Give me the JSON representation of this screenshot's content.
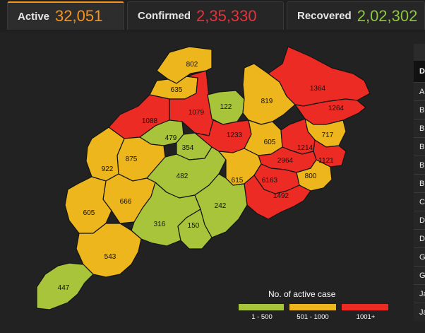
{
  "tabs": [
    {
      "label": "Active",
      "value": "32,051",
      "color": "#f7941d",
      "active": true
    },
    {
      "label": "Confirmed",
      "value": "2,35,330",
      "color": "#e2343b",
      "active": false
    },
    {
      "label": "Recovered",
      "value": "2,02,302",
      "color": "#8dc63f",
      "active": false
    }
  ],
  "legend": {
    "title": "No. of active case",
    "items": [
      {
        "label": "1 - 500",
        "color": "#a8c43a"
      },
      {
        "label": "501 - 1000",
        "color": "#ecb61c"
      },
      {
        "label": "1001+",
        "color": "#ec2b25"
      }
    ]
  },
  "districts": [
    {
      "id": "d802",
      "value": "802",
      "color": "#ecb61c"
    },
    {
      "id": "d635",
      "value": "635",
      "color": "#ecb61c"
    },
    {
      "id": "d1079",
      "value": "1079",
      "color": "#ec2b25"
    },
    {
      "id": "d122",
      "value": "122",
      "color": "#a8c43a"
    },
    {
      "id": "d819",
      "value": "819",
      "color": "#ecb61c"
    },
    {
      "id": "d1364",
      "value": "1364",
      "color": "#ec2b25"
    },
    {
      "id": "d1264",
      "value": "1264",
      "color": "#ec2b25"
    },
    {
      "id": "d1088",
      "value": "1088",
      "color": "#ec2b25"
    },
    {
      "id": "d479",
      "value": "479",
      "color": "#a8c43a"
    },
    {
      "id": "d354",
      "value": "354",
      "color": "#a8c43a"
    },
    {
      "id": "d1233",
      "value": "1233",
      "color": "#ec2b25"
    },
    {
      "id": "d605b",
      "value": "605",
      "color": "#ecb61c"
    },
    {
      "id": "d717",
      "value": "717",
      "color": "#ecb61c"
    },
    {
      "id": "d1214",
      "value": "1214",
      "color": "#ec2b25"
    },
    {
      "id": "d1121",
      "value": "1121",
      "color": "#ec2b25"
    },
    {
      "id": "d875",
      "value": "875",
      "color": "#ecb61c"
    },
    {
      "id": "d922",
      "value": "922",
      "color": "#ecb61c"
    },
    {
      "id": "d482",
      "value": "482",
      "color": "#a8c43a"
    },
    {
      "id": "d2964",
      "value": "2964",
      "color": "#ec2b25"
    },
    {
      "id": "d800",
      "value": "800",
      "color": "#ecb61c"
    },
    {
      "id": "d615",
      "value": "615",
      "color": "#ecb61c"
    },
    {
      "id": "d6163",
      "value": "6163",
      "color": "#ec2b25"
    },
    {
      "id": "d1492",
      "value": "1492",
      "color": "#ec2b25"
    },
    {
      "id": "d666",
      "value": "666",
      "color": "#ecb61c"
    },
    {
      "id": "d605a",
      "value": "605",
      "color": "#ecb61c"
    },
    {
      "id": "d242",
      "value": "242",
      "color": "#a8c43a"
    },
    {
      "id": "d316",
      "value": "316",
      "color": "#a8c43a"
    },
    {
      "id": "d150",
      "value": "150",
      "color": "#a8c43a"
    },
    {
      "id": "d543",
      "value": "543",
      "color": "#ecb61c"
    },
    {
      "id": "d447",
      "value": "447",
      "color": "#a8c43a"
    }
  ],
  "sidebar": {
    "header": "D",
    "rows": [
      "A",
      "B",
      "B",
      "B",
      "B",
      "B",
      "C",
      "D",
      "D",
      "G",
      "G",
      "Ja",
      "Ja"
    ]
  }
}
